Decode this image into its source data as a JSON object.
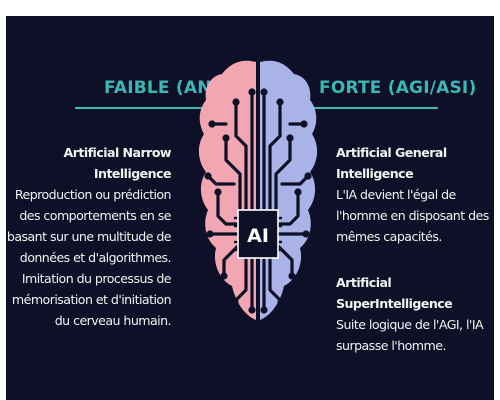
{
  "left": {
    "heading": "FAIBLE (ANI)",
    "title": "Artificial Narrow Intelligence",
    "lines": [
      "Reproduction ou prédiction",
      "des comportements en se",
      "basant sur une multitude de",
      "données et d'algorithmes.",
      "Imitation du processus de",
      "mémorisation et d'initiation",
      "du cerveau humain."
    ]
  },
  "right": {
    "heading": "FORTE (AGI/ASI)",
    "general": {
      "title": "Artificial General Intelligence",
      "lines": [
        "L'IA devient l'égal de",
        "l'homme en disposant des",
        "mêmes capacités."
      ]
    },
    "super": {
      "title": "Artificial SuperIntelligence",
      "lines": [
        "Suite logique de l'AGI, l'IA",
        "surpasse l'homme."
      ]
    }
  },
  "chip": {
    "label": "AI"
  },
  "colors": {
    "background": "#0d1026",
    "accent": "#3bb8b5",
    "brain_left": "#f2a6b2",
    "brain_right": "#a9b3e8"
  }
}
